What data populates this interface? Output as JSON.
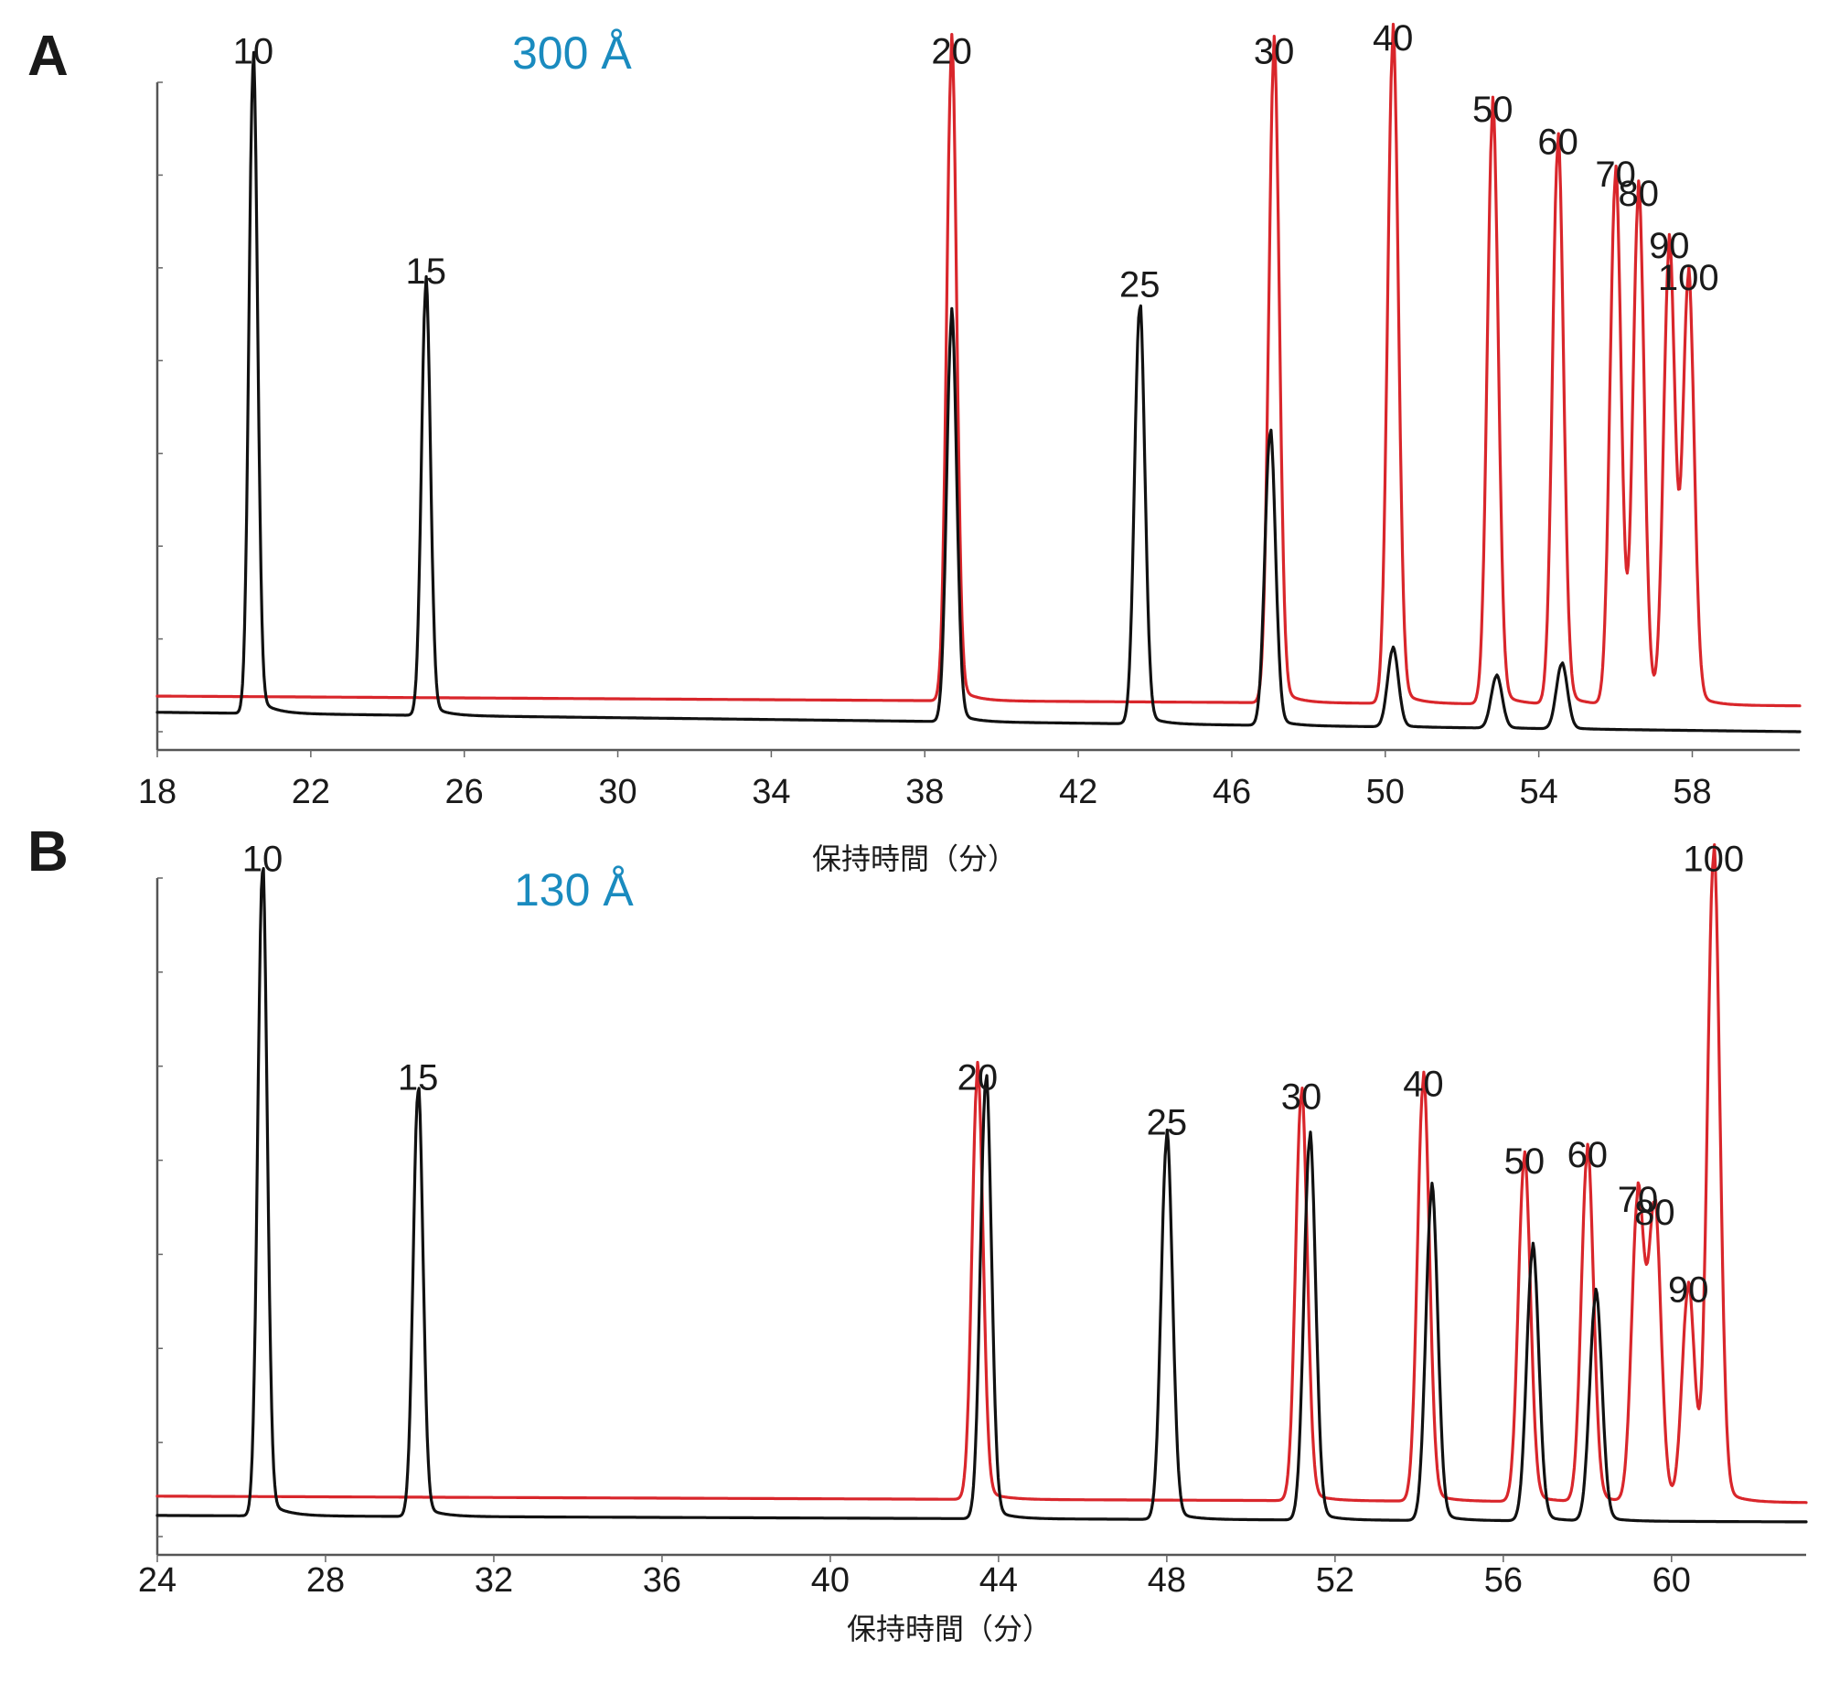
{
  "chart_data": [
    {
      "panel": "A",
      "type": "line",
      "title": "300 Å",
      "xlabel": "保持時間（分）",
      "ylabel": "",
      "xlim": [
        18,
        60.8
      ],
      "xticks": [
        18,
        22,
        26,
        30,
        34,
        38,
        42,
        46,
        50,
        54,
        58
      ],
      "ylim": [
        0,
        1
      ],
      "colors": {
        "title": "#1a8bbf",
        "black_trace": "#111111",
        "red_trace": "#d9262b"
      },
      "series": [
        {
          "color": "black",
          "baseline_start": 0.03,
          "baseline_end": 0.0,
          "peaks": [
            {
              "x": 20.5,
              "height": 1.0,
              "label": "10"
            },
            {
              "x": 25.0,
              "height": 0.66,
              "label": "15"
            },
            {
              "x": 38.7,
              "height": 0.62,
              "label": ""
            },
            {
              "x": 43.6,
              "height": 0.64,
              "label": "25"
            },
            {
              "x": 47.0,
              "height": 0.45,
              "label": ""
            },
            {
              "x": 50.2,
              "height": 0.12,
              "label": ""
            },
            {
              "x": 52.9,
              "height": 0.08,
              "label": ""
            },
            {
              "x": 54.6,
              "height": 0.1,
              "label": ""
            }
          ]
        },
        {
          "color": "red",
          "baseline_start": 0.055,
          "baseline_end": 0.04,
          "peaks": [
            {
              "x": 38.7,
              "height": 1.0,
              "label": "20"
            },
            {
              "x": 47.1,
              "height": 1.0,
              "label": "30"
            },
            {
              "x": 50.2,
              "height": 1.02,
              "label": "40"
            },
            {
              "x": 52.8,
              "height": 0.91,
              "label": "50"
            },
            {
              "x": 54.5,
              "height": 0.86,
              "label": "60"
            },
            {
              "x": 56.0,
              "height": 0.81,
              "label": "70"
            },
            {
              "x": 56.6,
              "height": 0.78,
              "label": "80"
            },
            {
              "x": 57.4,
              "height": 0.7,
              "label": "90"
            },
            {
              "x": 57.9,
              "height": 0.65,
              "label": "100"
            }
          ]
        }
      ]
    },
    {
      "panel": "B",
      "type": "line",
      "title": "130 Å",
      "xlabel": "保持時間（分）",
      "ylabel": "",
      "xlim": [
        24,
        63.2
      ],
      "xticks": [
        24,
        28,
        32,
        36,
        40,
        44,
        48,
        52,
        56,
        60
      ],
      "ylim": [
        0,
        1
      ],
      "colors": {
        "title": "#1a8bbf",
        "black_trace": "#111111",
        "red_trace": "#d9262b"
      },
      "series": [
        {
          "color": "black",
          "baseline_start": 0.03,
          "baseline_end": 0.02,
          "peaks": [
            {
              "x": 26.5,
              "height": 1.0,
              "label": "10"
            },
            {
              "x": 30.2,
              "height": 0.66,
              "label": "15"
            },
            {
              "x": 43.7,
              "height": 0.68,
              "label": ""
            },
            {
              "x": 48.0,
              "height": 0.59,
              "label": "25"
            },
            {
              "x": 51.4,
              "height": 0.59,
              "label": ""
            },
            {
              "x": 54.3,
              "height": 0.51,
              "label": ""
            },
            {
              "x": 56.7,
              "height": 0.42,
              "label": ""
            },
            {
              "x": 58.2,
              "height": 0.35,
              "label": ""
            }
          ]
        },
        {
          "color": "red",
          "baseline_start": 0.06,
          "baseline_end": 0.05,
          "peaks": [
            {
              "x": 43.5,
              "height": 0.66,
              "label": "20"
            },
            {
              "x": 51.2,
              "height": 0.63,
              "label": "30"
            },
            {
              "x": 54.1,
              "height": 0.65,
              "label": "40"
            },
            {
              "x": 56.5,
              "height": 0.53,
              "label": "50"
            },
            {
              "x": 58.0,
              "height": 0.54,
              "label": "60"
            },
            {
              "x": 59.2,
              "height": 0.47,
              "label": "70"
            },
            {
              "x": 59.6,
              "height": 0.45,
              "label": "80"
            },
            {
              "x": 60.4,
              "height": 0.33,
              "label": "90"
            },
            {
              "x": 61.0,
              "height": 1.0,
              "label": "100"
            }
          ]
        }
      ]
    }
  ]
}
